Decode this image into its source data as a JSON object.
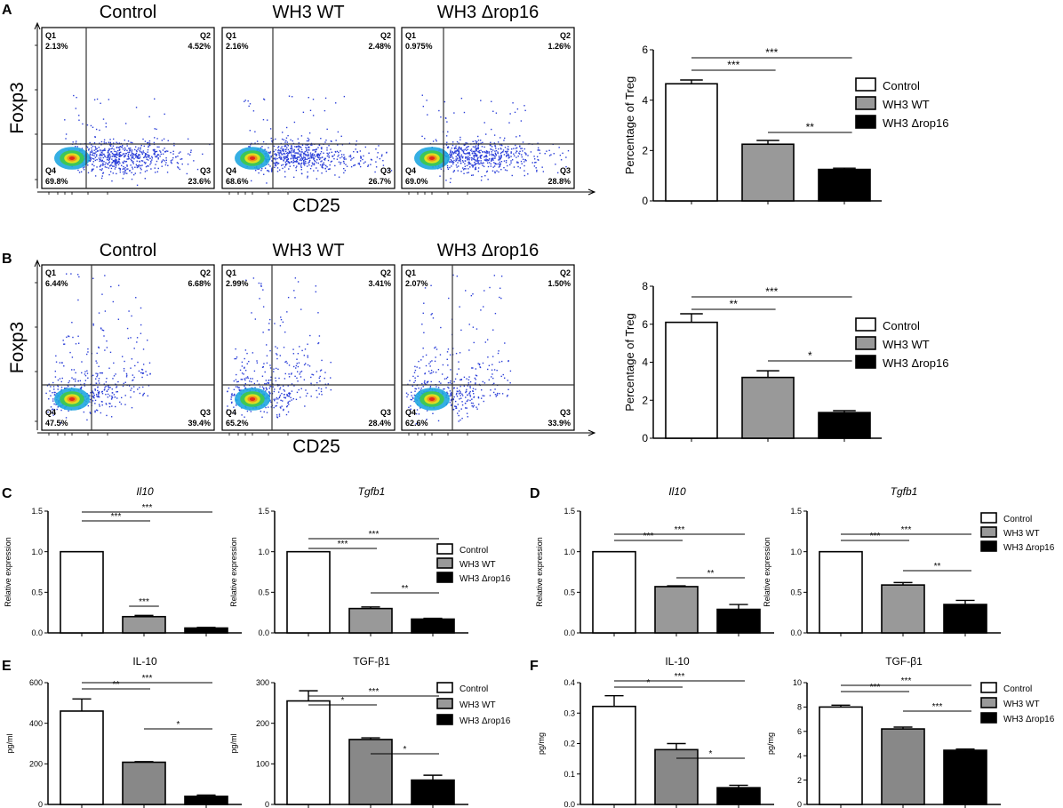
{
  "colors": {
    "control": "#ffffff",
    "wt": "#999999",
    "wt_dark": "#888888",
    "rop16": "#000000",
    "scatter": "#2b3fd8"
  },
  "panel_letters": [
    "A",
    "B",
    "C",
    "D",
    "E",
    "F"
  ],
  "flow_labels": {
    "y": "Foxp3",
    "x": "CD25",
    "tick": "10"
  },
  "chart_data": [
    {
      "id": "A-flow",
      "type": "scatter",
      "panel": "A",
      "titles": [
        "Control",
        "WH3 WT",
        "WH3 Δrop16"
      ],
      "quadrants": [
        {
          "Q1": "2.13%",
          "Q2": "4.52%",
          "Q3": "23.6%",
          "Q4": "69.8%"
        },
        {
          "Q1": "2.16%",
          "Q2": "2.48%",
          "Q3": "26.7%",
          "Q4": "68.6%"
        },
        {
          "Q1": "0.975%",
          "Q2": "1.26%",
          "Q3": "28.8%",
          "Q4": "69.0%"
        }
      ],
      "xlabel": "CD25",
      "ylabel": "Foxp3"
    },
    {
      "id": "A-bar",
      "type": "bar",
      "panel": "A",
      "categories": [
        "Control",
        "WH3 WT",
        "WH3 Δrop16"
      ],
      "values": [
        4.65,
        2.25,
        1.25
      ],
      "errors": [
        0.15,
        0.15,
        0.05
      ],
      "ylabel": "Percentage of Treg",
      "ylim": [
        0,
        6
      ],
      "yticks": [
        "0",
        "2",
        "4",
        "6"
      ],
      "sig": [
        {
          "from": 0,
          "to": 1,
          "label": "***"
        },
        {
          "from": 0,
          "to": 2,
          "label": "***"
        },
        {
          "from": 1,
          "to": 2,
          "label": "**"
        }
      ],
      "legend": [
        "Control",
        "WH3 WT",
        "WH3 Δrop16"
      ]
    },
    {
      "id": "B-flow",
      "type": "scatter",
      "panel": "B",
      "titles": [
        "Control",
        "WH3 WT",
        "WH3 Δrop16"
      ],
      "quadrants": [
        {
          "Q1": "6.44%",
          "Q2": "6.68%",
          "Q3": "39.4%",
          "Q4": "47.5%"
        },
        {
          "Q1": "2.99%",
          "Q2": "3.41%",
          "Q3": "28.4%",
          "Q4": "65.2%"
        },
        {
          "Q1": "2.07%",
          "Q2": "1.50%",
          "Q3": "33.9%",
          "Q4": "62.6%"
        }
      ],
      "xlabel": "CD25",
      "ylabel": "Foxp3"
    },
    {
      "id": "B-bar",
      "type": "bar",
      "panel": "B",
      "categories": [
        "Control",
        "WH3 WT",
        "WH3 Δrop16"
      ],
      "values": [
        6.1,
        3.2,
        1.35
      ],
      "errors": [
        0.45,
        0.35,
        0.1
      ],
      "ylabel": "Percentage of Treg",
      "ylim": [
        0,
        8
      ],
      "yticks": [
        "0",
        "2",
        "4",
        "6",
        "8"
      ],
      "sig": [
        {
          "from": 0,
          "to": 1,
          "label": "**"
        },
        {
          "from": 0,
          "to": 2,
          "label": "***"
        },
        {
          "from": 1,
          "to": 2,
          "label": "*"
        }
      ],
      "legend": [
        "Control",
        "WH3 WT",
        "WH3 Δrop16"
      ]
    },
    {
      "id": "C-Il10",
      "type": "bar",
      "panel": "C",
      "title": "Il10",
      "italic": true,
      "categories": [
        "Control",
        "WH3 WT",
        "WH3 Δrop16"
      ],
      "values": [
        1.0,
        0.2,
        0.06
      ],
      "errors": [
        0,
        0.015,
        0.008
      ],
      "ylabel": "Relative expression",
      "ylim": [
        0,
        1.5
      ],
      "yticks": [
        "0.0",
        "0.5",
        "1.0",
        "1.5"
      ],
      "sig": [
        {
          "from": 0,
          "to": 1,
          "label": "***"
        },
        {
          "from": 0,
          "to": 2,
          "label": "***"
        },
        {
          "from": 1,
          "to": 1,
          "label": "***"
        }
      ]
    },
    {
      "id": "C-Tgfb1",
      "type": "bar",
      "panel": "C",
      "title": "Tgfb1",
      "italic": true,
      "categories": [
        "Control",
        "WH3 WT",
        "WH3 Δrop16"
      ],
      "values": [
        1.0,
        0.3,
        0.17
      ],
      "errors": [
        0,
        0.02,
        0.01
      ],
      "ylabel": "Relative expression",
      "ylim": [
        0,
        1.5
      ],
      "yticks": [
        "0.0",
        "0.5",
        "1.0",
        "1.5"
      ],
      "sig": [
        {
          "from": 0,
          "to": 1,
          "label": "***"
        },
        {
          "from": 0,
          "to": 2,
          "label": "***"
        },
        {
          "from": 1,
          "to": 2,
          "label": "**"
        }
      ],
      "legend": [
        "Control",
        "WH3 WT",
        "WH3 Δrop16"
      ]
    },
    {
      "id": "D-Il10",
      "type": "bar",
      "panel": "D",
      "title": "Il10",
      "italic": true,
      "categories": [
        "Control",
        "WH3 WT",
        "WH3 Δrop16"
      ],
      "values": [
        1.0,
        0.57,
        0.29
      ],
      "errors": [
        0,
        0.01,
        0.06
      ],
      "ylabel": "Relative expression",
      "ylim": [
        0,
        1.5
      ],
      "yticks": [
        "0.0",
        "0.5",
        "1.0",
        "1.5"
      ],
      "sig": [
        {
          "from": 0,
          "to": 1,
          "label": "***"
        },
        {
          "from": 0,
          "to": 2,
          "label": "***"
        },
        {
          "from": 1,
          "to": 2,
          "label": "**"
        }
      ]
    },
    {
      "id": "D-Tgfb1",
      "type": "bar",
      "panel": "D",
      "title": "Tgfb1",
      "italic": true,
      "categories": [
        "Control",
        "WH3 WT",
        "WH3 Δrop16"
      ],
      "values": [
        1.0,
        0.59,
        0.35
      ],
      "errors": [
        0,
        0.03,
        0.05
      ],
      "ylabel": "Relative expression",
      "ylim": [
        0,
        1.5
      ],
      "yticks": [
        "0.0",
        "0.5",
        "1.0",
        "1.5"
      ],
      "sig": [
        {
          "from": 0,
          "to": 1,
          "label": "***"
        },
        {
          "from": 0,
          "to": 2,
          "label": "***"
        },
        {
          "from": 1,
          "to": 2,
          "label": "**"
        }
      ],
      "legend": [
        "Control",
        "WH3 WT",
        "WH3 Δrop16"
      ]
    },
    {
      "id": "E-IL10",
      "type": "bar",
      "panel": "E",
      "title": "IL-10",
      "italic": false,
      "categories": [
        "Control",
        "WH3 WT",
        "WH3 Δrop16"
      ],
      "values": [
        460,
        208,
        40
      ],
      "errors": [
        60,
        3,
        6
      ],
      "ylabel": "pg/ml",
      "ylim": [
        0,
        600
      ],
      "yticks": [
        "0",
        "200",
        "400",
        "600"
      ],
      "sig": [
        {
          "from": 0,
          "to": 1,
          "label": "**"
        },
        {
          "from": 0,
          "to": 2,
          "label": "***"
        },
        {
          "from": 1,
          "to": 2,
          "label": "*"
        }
      ]
    },
    {
      "id": "E-TGFb1",
      "type": "bar",
      "panel": "E",
      "title": "TGF-β1",
      "italic": false,
      "categories": [
        "Control",
        "WH3 WT",
        "WH3 Δrop16"
      ],
      "values": [
        255,
        160,
        60
      ],
      "errors": [
        25,
        4,
        12
      ],
      "ylabel": "pg/ml",
      "ylim": [
        0,
        300
      ],
      "yticks": [
        "0",
        "100",
        "200",
        "300"
      ],
      "sig": [
        {
          "from": 0,
          "to": 1,
          "label": "*"
        },
        {
          "from": 0,
          "to": 2,
          "label": "***"
        },
        {
          "from": 1,
          "to": 2,
          "label": "*"
        }
      ],
      "legend": [
        "Control",
        "WH3 WT",
        "WH3 Δrop16"
      ]
    },
    {
      "id": "F-IL10",
      "type": "bar",
      "panel": "F",
      "title": "IL-10",
      "italic": false,
      "categories": [
        "Control",
        "WH3 WT",
        "WH3 Δrop16"
      ],
      "values": [
        0.322,
        0.18,
        0.055
      ],
      "errors": [
        0.035,
        0.02,
        0.008
      ],
      "ylabel": "pg/mg",
      "ylim": [
        0,
        0.4
      ],
      "yticks": [
        "0.0",
        "0.1",
        "0.2",
        "0.3",
        "0.4"
      ],
      "sig": [
        {
          "from": 0,
          "to": 1,
          "label": "*"
        },
        {
          "from": 0,
          "to": 2,
          "label": "***"
        },
        {
          "from": 1,
          "to": 2,
          "label": "*"
        }
      ]
    },
    {
      "id": "F-TGFb1",
      "type": "bar",
      "panel": "F",
      "title": "TGF-β1",
      "italic": false,
      "categories": [
        "Control",
        "WH3 WT",
        "WH3 Δrop16"
      ],
      "values": [
        8.0,
        6.2,
        4.45
      ],
      "errors": [
        0.15,
        0.15,
        0.1
      ],
      "ylabel": "pg/mg",
      "ylim": [
        0,
        10
      ],
      "yticks": [
        "0",
        "2",
        "4",
        "6",
        "8",
        "10"
      ],
      "sig": [
        {
          "from": 0,
          "to": 1,
          "label": "***"
        },
        {
          "from": 0,
          "to": 2,
          "label": "***"
        },
        {
          "from": 1,
          "to": 2,
          "label": "***"
        }
      ],
      "legend": [
        "Control",
        "WH3 WT",
        "WH3 Δrop16"
      ]
    }
  ]
}
